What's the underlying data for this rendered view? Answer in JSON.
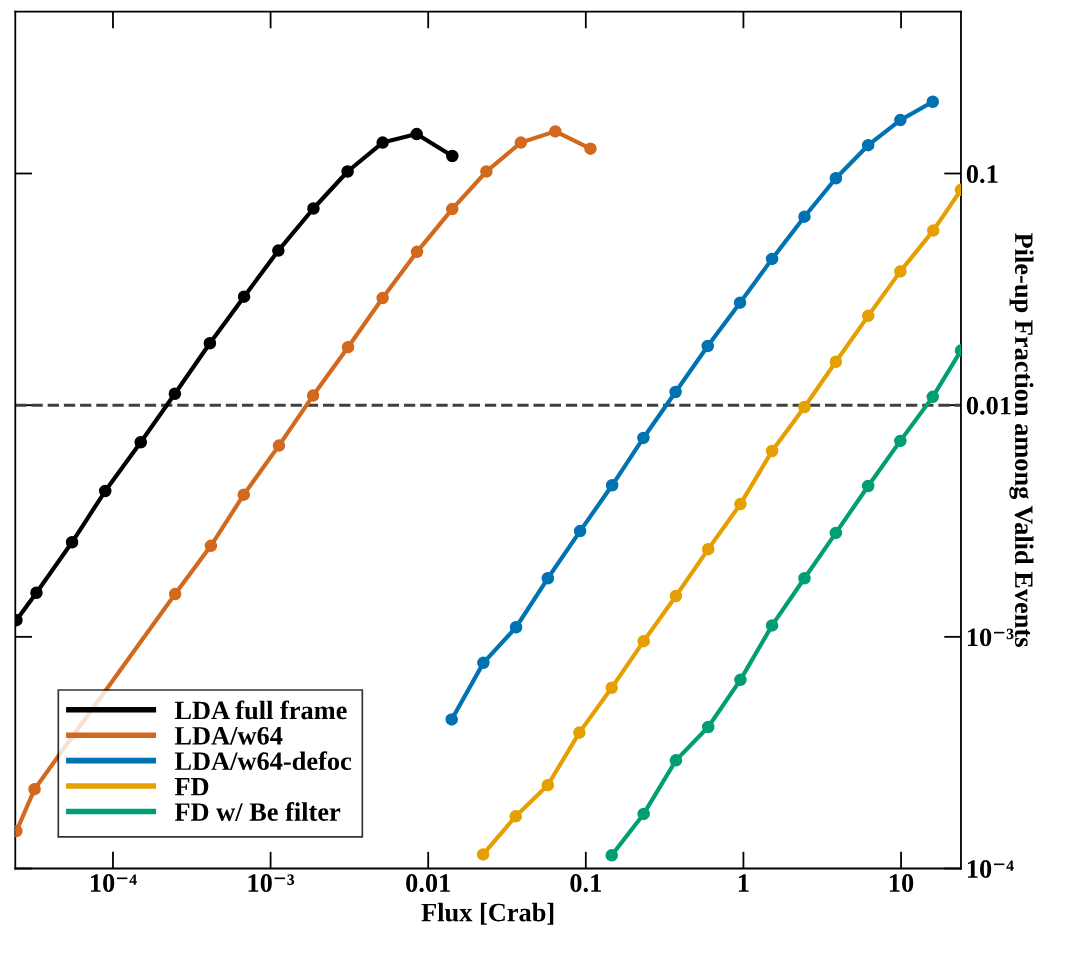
{
  "chart_data": {
    "type": "line",
    "xlabel": "Flux [Crab]",
    "ylabel": "Pile-up Fraction among Valid Events",
    "log": "xy",
    "grid": false,
    "legend": "bottom left",
    "marker": "circle",
    "line_style": "solid",
    "xlim": [
      2.4e-05,
      24
    ],
    "ylim": [
      0.0001,
      0.5
    ],
    "xticks": [
      {
        "value": 0.0001,
        "label": "10⁻⁴"
      },
      {
        "value": 0.001,
        "label": "10⁻³"
      },
      0.01,
      0.1,
      1,
      10
    ],
    "yticks": [
      {
        "value": 0.0001,
        "label": "10⁻⁴"
      },
      {
        "value": 0.001,
        "label": "10⁻³"
      },
      0.01,
      0.1
    ],
    "ref_lines": [
      {
        "axis": "y",
        "value": 0.01,
        "color": "#404040",
        "line_style": "dashed"
      }
    ],
    "series": [
      {
        "name": "LDA full frame",
        "color": "#000000",
        "x": [
          2.44e-05,
          3.27e-05,
          5.5e-05,
          8.93e-05,
          0.00015,
          0.000247,
          0.000412,
          0.000679,
          0.00112,
          0.00187,
          0.00308,
          0.00514,
          0.00845,
          0.01422
        ],
        "values": [
          0.00118,
          0.00155,
          0.00256,
          0.00426,
          0.00692,
          0.0112,
          0.0185,
          0.0294,
          0.0465,
          0.0706,
          0.102,
          0.136,
          0.148,
          0.119
        ]
      },
      {
        "name": "LDA/w64",
        "color": "#d2691e",
        "x": [
          2.44e-05,
          3.18e-05,
          0.000248,
          0.000418,
          0.000676,
          0.00113,
          0.00186,
          0.0031,
          0.00514,
          0.00849,
          0.0142,
          0.0234,
          0.0387,
          0.0641,
          0.107
        ],
        "values": [
          0.000145,
          0.00022,
          0.00153,
          0.00247,
          0.00411,
          0.00669,
          0.011,
          0.0178,
          0.029,
          0.0459,
          0.0702,
          0.102,
          0.136,
          0.152,
          0.128
        ]
      },
      {
        "name": "LDA/w64-defoc",
        "color": "#0072b2",
        "x": [
          0.0141,
          0.0224,
          0.0361,
          0.0574,
          0.092,
          0.147,
          0.232,
          0.371,
          0.594,
          0.952,
          1.52,
          2.44,
          3.86,
          6.19,
          9.9,
          15.9
        ],
        "values": [
          0.00044,
          0.000772,
          0.0011,
          0.00179,
          0.00286,
          0.00451,
          0.00722,
          0.0114,
          0.018,
          0.0277,
          0.0428,
          0.0651,
          0.0954,
          0.1325,
          0.17,
          0.204
        ]
      },
      {
        "name": "FD",
        "color": "#e69f00",
        "x": [
          0.0223,
          0.0359,
          0.0574,
          0.091,
          0.146,
          0.233,
          0.373,
          0.598,
          0.957,
          1.52,
          2.44,
          3.86,
          6.19,
          9.9,
          16.0,
          24
        ],
        "values": [
          0.000115,
          0.000168,
          0.000229,
          0.000386,
          0.000603,
          0.000958,
          0.0015,
          0.00239,
          0.00374,
          0.00634,
          0.00982,
          0.0154,
          0.0243,
          0.0378,
          0.0567,
          0.085
        ]
      },
      {
        "name": "FD w/ Be filter",
        "color": "#009e73",
        "x": [
          0.146,
          0.233,
          0.373,
          0.598,
          0.957,
          1.52,
          2.44,
          3.86,
          6.19,
          9.9,
          15.9,
          24
        ],
        "values": [
          0.000114,
          0.000172,
          0.000293,
          0.000408,
          0.000652,
          0.00112,
          0.00179,
          0.00281,
          0.00448,
          0.00701,
          0.01086,
          0.0172
        ]
      }
    ]
  }
}
